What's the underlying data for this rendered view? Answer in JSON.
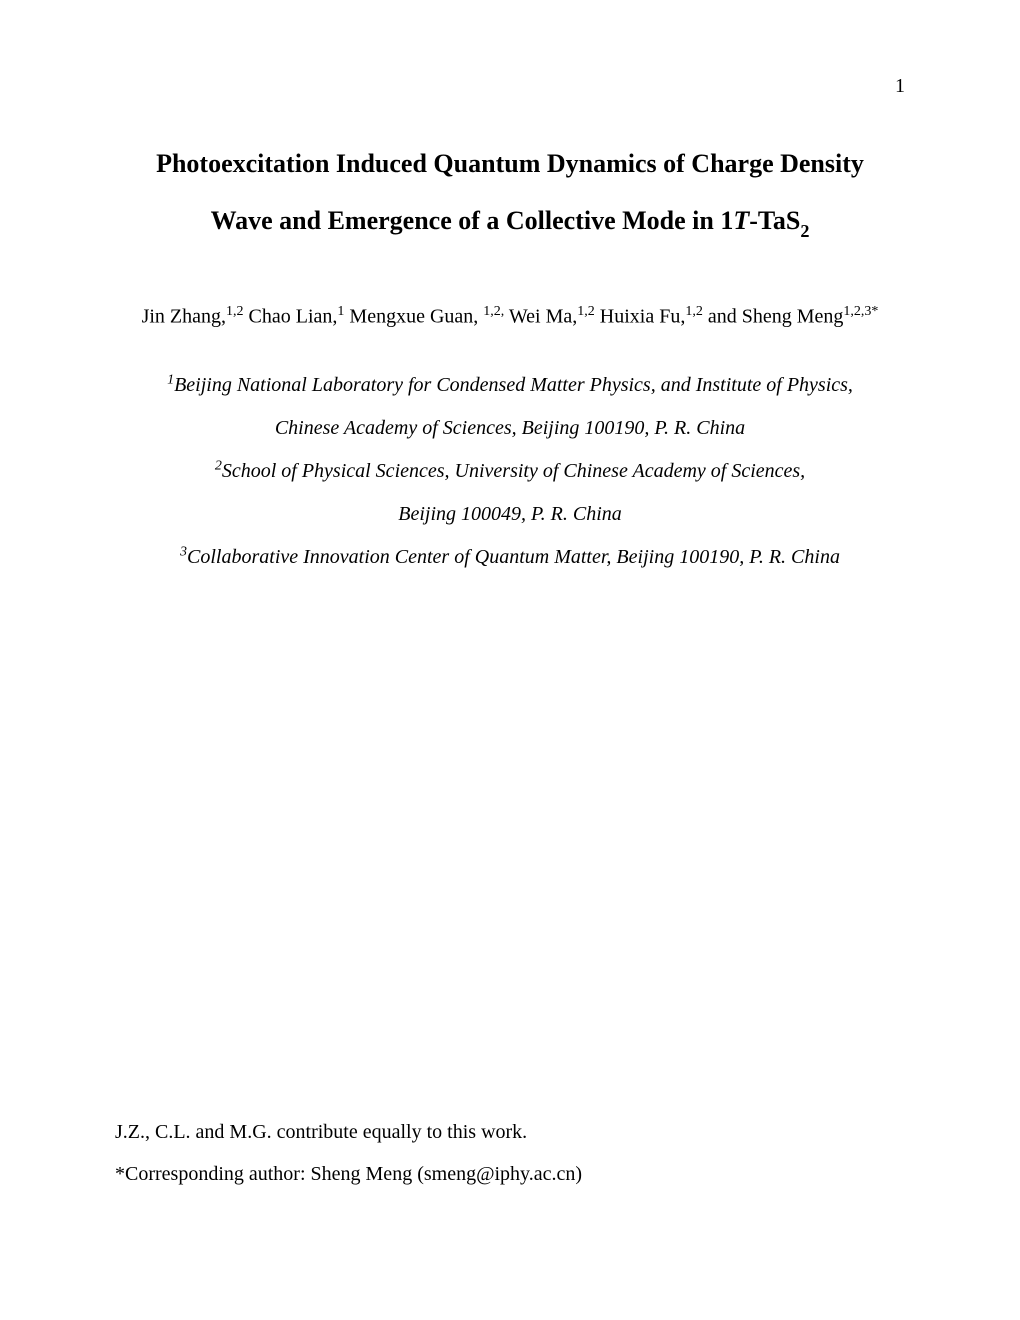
{
  "page_number": "1",
  "title": {
    "line1_pre": "Photoexcitation Induced Quantum Dynamics of Charge Density",
    "line2_pre": "Wave and Emergence of a Collective Mode in 1",
    "line2_italic": "T",
    "line2_mid": "-TaS",
    "line2_sub": "2"
  },
  "authors": {
    "a1_name": "Jin Zhang,",
    "a1_sup": "1,2",
    "a2_name": " Chao Lian,",
    "a2_sup": "1",
    "a3_name": "  Mengxue Guan, ",
    "a3_sup": "1,2,",
    "a4_name": " Wei Ma,",
    "a4_sup": "1,2",
    "a5_name": " Huixia Fu,",
    "a5_sup": "1,2",
    "a6_pre": " and Sheng Meng",
    "a6_sup": "1,2,3*"
  },
  "affiliations": {
    "aff1_sup": "1",
    "aff1_line1": "Beijing National Laboratory for Condensed Matter Physics, and Institute of Physics,",
    "aff1_line2": "Chinese Academy of Sciences, Beijing 100190, P. R. China",
    "aff2_sup": "2",
    "aff2_line1": "School of Physical Sciences, University of Chinese Academy of Sciences,",
    "aff2_line2": "Beijing 100049, P. R. China",
    "aff3_sup": "3",
    "aff3_line1": "Collaborative Innovation Center of Quantum Matter, Beijing 100190, P. R. China"
  },
  "footer": {
    "contrib": "J.Z., C.L. and M.G. contribute equally to this work.",
    "corresponding": "*Corresponding author: Sheng Meng (smeng@iphy.ac.cn)"
  }
}
